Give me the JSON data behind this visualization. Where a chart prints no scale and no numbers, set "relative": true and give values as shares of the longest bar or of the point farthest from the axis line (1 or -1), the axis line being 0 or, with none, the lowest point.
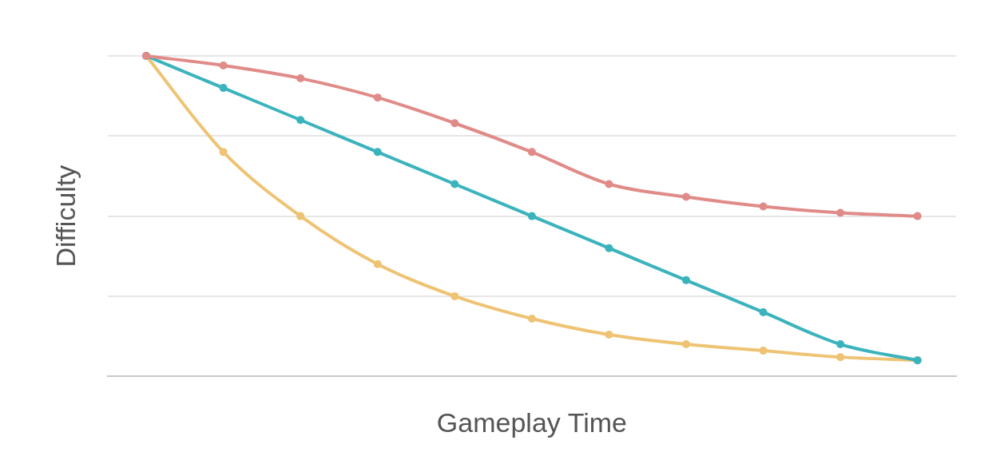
{
  "chart_data": {
    "type": "line",
    "relative": true,
    "xlabel": "Gameplay Time",
    "ylabel": "Difficulty",
    "categories": [
      null,
      null,
      null,
      null,
      null,
      null,
      null,
      null,
      null,
      null,
      null
    ],
    "series": [
      {
        "color": "#e08b88",
        "values": [
          1.0,
          0.97,
          0.93,
          0.87,
          0.79,
          0.7,
          0.6,
          0.56,
          0.53,
          0.51,
          0.5
        ]
      },
      {
        "color": "#3bb3bd",
        "values": [
          1.0,
          0.9,
          0.8,
          0.7,
          0.6,
          0.5,
          0.4,
          0.3,
          0.2,
          0.1,
          0.05
        ]
      },
      {
        "color": "#eec373",
        "values": [
          1.0,
          0.7,
          0.5,
          0.35,
          0.25,
          0.18,
          0.13,
          0.1,
          0.08,
          0.06,
          0.05
        ]
      }
    ],
    "grid": "y",
    "legend": false,
    "marker": "circle",
    "line_style": "solid"
  }
}
